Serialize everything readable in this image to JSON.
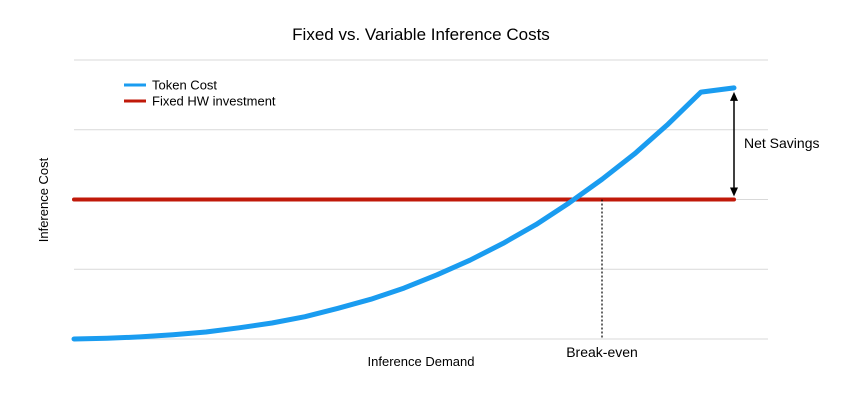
{
  "chart_data": {
    "type": "line",
    "title": "Fixed vs. Variable Inference Costs",
    "xlabel": "Inference Demand",
    "ylabel": "Inference Cost",
    "xlim": [
      0,
      1
    ],
    "ylim": [
      0,
      4
    ],
    "grid": true,
    "legend": "top-left",
    "series": [
      {
        "name": "Token Cost",
        "color": "#1a9cf0",
        "x": [
          0,
          0.05,
          0.1,
          0.15,
          0.2,
          0.25,
          0.3,
          0.35,
          0.4,
          0.45,
          0.5,
          0.55,
          0.6,
          0.65,
          0.7,
          0.75,
          0.8,
          0.85,
          0.9,
          0.95,
          1.0
        ],
        "y": [
          0,
          0.01,
          0.03,
          0.06,
          0.1,
          0.16,
          0.23,
          0.32,
          0.44,
          0.57,
          0.73,
          0.92,
          1.13,
          1.37,
          1.64,
          1.95,
          2.29,
          2.66,
          3.08,
          3.54,
          3.6
        ]
      },
      {
        "name": "Fixed HW investment",
        "color": "#c0190a",
        "x": [
          0,
          1.0
        ],
        "y": [
          2.0,
          2.0
        ]
      }
    ],
    "annotations": [
      {
        "text": "Break-even",
        "x": 0.8,
        "y": 2.0
      },
      {
        "text": "Net Savings",
        "x": 1.0,
        "y_from": 2.0,
        "y_to": 3.6
      }
    ]
  }
}
